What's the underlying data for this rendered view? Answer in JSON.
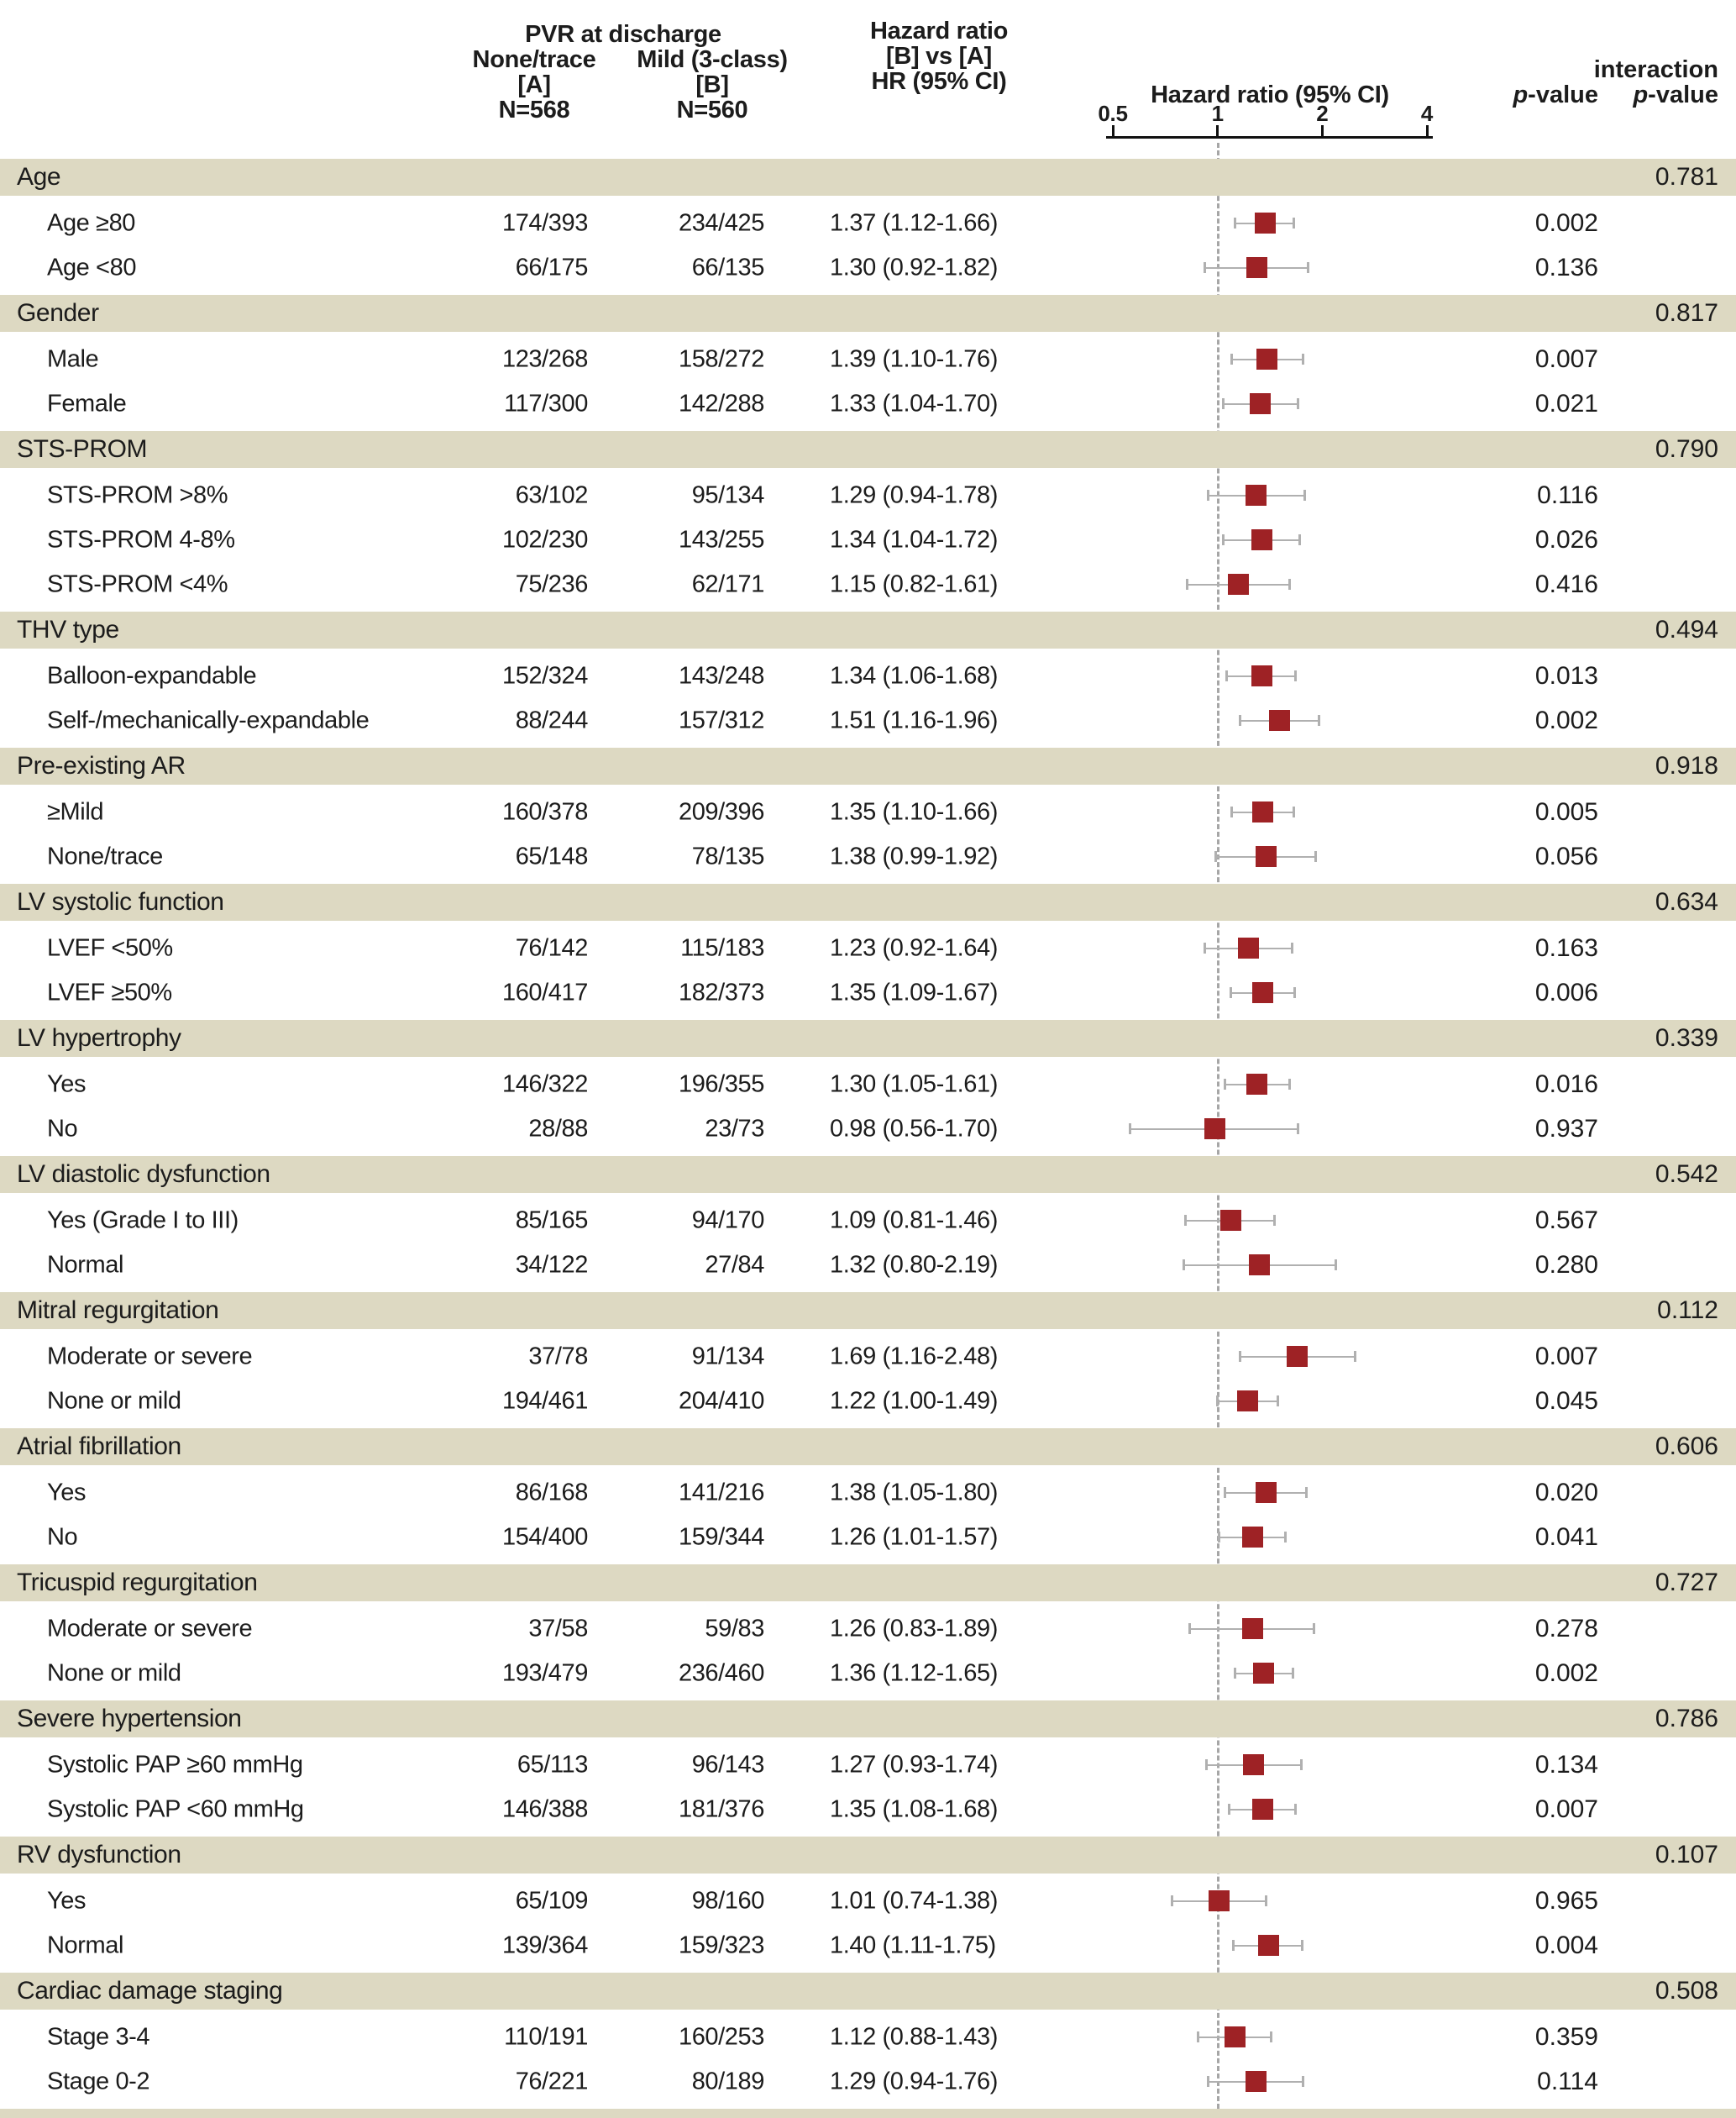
{
  "header": {
    "span_label": "PVR at discharge",
    "col_a": {
      "line1": "None/trace",
      "line2": "[A]",
      "line3": "N=568"
    },
    "col_b": {
      "line1": "Mild (3-class)",
      "line2": "[B]",
      "line3": "N=560"
    },
    "hr_col": {
      "line1": "Hazard ratio",
      "line2": "[B] vs [A]",
      "line3": "HR (95% CI)"
    },
    "plot_title": "Hazard ratio (95% CI)",
    "pvalue_label_prefix": "p",
    "pvalue_label_suffix": "-value",
    "interaction_line1": "interaction",
    "interaction_line2_prefix": "p",
    "interaction_line2_suffix": "-value"
  },
  "colors": {
    "band_bg": "#ddd9c2",
    "marker": "#9e2225",
    "whisker": "#b0b0b0",
    "reference_dash": "#a6a6a6",
    "axis": "#111111",
    "text": "#1c1c1c"
  },
  "chart_data": {
    "type": "forest",
    "title": "Hazard ratio (95% CI)",
    "axis": {
      "scale": "log2",
      "ticks": [
        0.5,
        1,
        2,
        4
      ],
      "tick_labels": [
        "0.5",
        "1",
        "2",
        "4"
      ],
      "xlim": [
        0.5,
        4
      ],
      "reference_line": 1
    },
    "legend_position": "none",
    "groups": [
      {
        "label": "Age",
        "interaction_p": "0.781",
        "items": [
          {
            "label": "Age ≥80",
            "a": "174/393",
            "b": "234/425",
            "hr_text": "1.37 (1.12-1.66)",
            "hr": 1.37,
            "lo": 1.12,
            "hi": 1.66,
            "p": "0.002"
          },
          {
            "label": "Age <80",
            "a": "66/175",
            "b": "66/135",
            "hr_text": "1.30 (0.92-1.82)",
            "hr": 1.3,
            "lo": 0.92,
            "hi": 1.82,
            "p": "0.136"
          }
        ]
      },
      {
        "label": "Gender",
        "interaction_p": "0.817",
        "items": [
          {
            "label": "Male",
            "a": "123/268",
            "b": "158/272",
            "hr_text": "1.39 (1.10-1.76)",
            "hr": 1.39,
            "lo": 1.1,
            "hi": 1.76,
            "p": "0.007"
          },
          {
            "label": "Female",
            "a": "117/300",
            "b": "142/288",
            "hr_text": "1.33 (1.04-1.70)",
            "hr": 1.33,
            "lo": 1.04,
            "hi": 1.7,
            "p": "0.021"
          }
        ]
      },
      {
        "label": "STS-PROM",
        "interaction_p": "0.790",
        "items": [
          {
            "label": "STS-PROM >8%",
            "a": "63/102",
            "b": "95/134",
            "hr_text": "1.29 (0.94-1.78)",
            "hr": 1.29,
            "lo": 0.94,
            "hi": 1.78,
            "p": "0.116"
          },
          {
            "label": "STS-PROM 4-8%",
            "a": "102/230",
            "b": "143/255",
            "hr_text": "1.34 (1.04-1.72)",
            "hr": 1.34,
            "lo": 1.04,
            "hi": 1.72,
            "p": "0.026"
          },
          {
            "label": "STS-PROM <4%",
            "a": "75/236",
            "b": "62/171",
            "hr_text": "1.15 (0.82-1.61)",
            "hr": 1.15,
            "lo": 0.82,
            "hi": 1.61,
            "p": "0.416"
          }
        ]
      },
      {
        "label": "THV type",
        "interaction_p": "0.494",
        "items": [
          {
            "label": "Balloon-expandable",
            "a": "152/324",
            "b": "143/248",
            "hr_text": "1.34 (1.06-1.68)",
            "hr": 1.34,
            "lo": 1.06,
            "hi": 1.68,
            "p": "0.013"
          },
          {
            "label": "Self-/mechanically-expandable",
            "a": "88/244",
            "b": "157/312",
            "hr_text": "1.51 (1.16-1.96)",
            "hr": 1.51,
            "lo": 1.16,
            "hi": 1.96,
            "p": "0.002"
          }
        ]
      },
      {
        "label": "Pre-existing AR",
        "interaction_p": "0.918",
        "items": [
          {
            "label": "≥Mild",
            "a": "160/378",
            "b": "209/396",
            "hr_text": "1.35 (1.10-1.66)",
            "hr": 1.35,
            "lo": 1.1,
            "hi": 1.66,
            "p": "0.005"
          },
          {
            "label": "None/trace",
            "a": "65/148",
            "b": "78/135",
            "hr_text": "1.38 (0.99-1.92)",
            "hr": 1.38,
            "lo": 0.99,
            "hi": 1.92,
            "p": "0.056"
          }
        ]
      },
      {
        "label": "LV systolic function",
        "interaction_p": "0.634",
        "items": [
          {
            "label": "LVEF <50%",
            "a": "76/142",
            "b": "115/183",
            "hr_text": "1.23 (0.92-1.64)",
            "hr": 1.23,
            "lo": 0.92,
            "hi": 1.64,
            "p": "0.163"
          },
          {
            "label": "LVEF ≥50%",
            "a": "160/417",
            "b": "182/373",
            "hr_text": "1.35 (1.09-1.67)",
            "hr": 1.35,
            "lo": 1.09,
            "hi": 1.67,
            "p": "0.006"
          }
        ]
      },
      {
        "label": "LV hypertrophy",
        "interaction_p": "0.339",
        "items": [
          {
            "label": "Yes",
            "a": "146/322",
            "b": "196/355",
            "hr_text": "1.30 (1.05-1.61)",
            "hr": 1.3,
            "lo": 1.05,
            "hi": 1.61,
            "p": "0.016"
          },
          {
            "label": "No",
            "a": "28/88",
            "b": "23/73",
            "hr_text": "0.98 (0.56-1.70)",
            "hr": 0.98,
            "lo": 0.56,
            "hi": 1.7,
            "p": "0.937"
          }
        ]
      },
      {
        "label": "LV diastolic dysfunction",
        "interaction_p": "0.542",
        "items": [
          {
            "label": "Yes (Grade I to III)",
            "a": "85/165",
            "b": "94/170",
            "hr_text": "1.09 (0.81-1.46)",
            "hr": 1.09,
            "lo": 0.81,
            "hi": 1.46,
            "p": "0.567"
          },
          {
            "label": "Normal",
            "a": "34/122",
            "b": "27/84",
            "hr_text": "1.32 (0.80-2.19)",
            "hr": 1.32,
            "lo": 0.8,
            "hi": 2.19,
            "p": "0.280"
          }
        ]
      },
      {
        "label": "Mitral regurgitation",
        "interaction_p": "0.112",
        "items": [
          {
            "label": "Moderate or severe",
            "a": "37/78",
            "b": "91/134",
            "hr_text": "1.69 (1.16-2.48)",
            "hr": 1.69,
            "lo": 1.16,
            "hi": 2.48,
            "p": "0.007"
          },
          {
            "label": "None or mild",
            "a": "194/461",
            "b": "204/410",
            "hr_text": "1.22 (1.00-1.49)",
            "hr": 1.22,
            "lo": 1.0,
            "hi": 1.49,
            "p": "0.045"
          }
        ]
      },
      {
        "label": "Atrial fibrillation",
        "interaction_p": "0.606",
        "items": [
          {
            "label": "Yes",
            "a": "86/168",
            "b": "141/216",
            "hr_text": "1.38 (1.05-1.80)",
            "hr": 1.38,
            "lo": 1.05,
            "hi": 1.8,
            "p": "0.020"
          },
          {
            "label": "No",
            "a": "154/400",
            "b": "159/344",
            "hr_text": "1.26 (1.01-1.57)",
            "hr": 1.26,
            "lo": 1.01,
            "hi": 1.57,
            "p": "0.041"
          }
        ]
      },
      {
        "label": "Tricuspid regurgitation",
        "interaction_p": "0.727",
        "items": [
          {
            "label": "Moderate or severe",
            "a": "37/58",
            "b": "59/83",
            "hr_text": "1.26 (0.83-1.89)",
            "hr": 1.26,
            "lo": 0.83,
            "hi": 1.89,
            "p": "0.278"
          },
          {
            "label": "None or mild",
            "a": "193/479",
            "b": "236/460",
            "hr_text": "1.36 (1.12-1.65)",
            "hr": 1.36,
            "lo": 1.12,
            "hi": 1.65,
            "p": "0.002"
          }
        ]
      },
      {
        "label": "Severe hypertension",
        "interaction_p": "0.786",
        "items": [
          {
            "label": "Systolic PAP ≥60 mmHg",
            "a": "65/113",
            "b": "96/143",
            "hr_text": "1.27 (0.93-1.74)",
            "hr": 1.27,
            "lo": 0.93,
            "hi": 1.74,
            "p": "0.134"
          },
          {
            "label": "Systolic PAP <60 mmHg",
            "a": "146/388",
            "b": "181/376",
            "hr_text": "1.35 (1.08-1.68)",
            "hr": 1.35,
            "lo": 1.08,
            "hi": 1.68,
            "p": "0.007"
          }
        ]
      },
      {
        "label": "RV dysfunction",
        "interaction_p": "0.107",
        "items": [
          {
            "label": "Yes",
            "a": "65/109",
            "b": "98/160",
            "hr_text": "1.01 (0.74-1.38)",
            "hr": 1.01,
            "lo": 0.74,
            "hi": 1.38,
            "p": "0.965"
          },
          {
            "label": "Normal",
            "a": "139/364",
            "b": "159/323",
            "hr_text": "1.40 (1.11-1.75)",
            "hr": 1.4,
            "lo": 1.11,
            "hi": 1.75,
            "p": "0.004"
          }
        ]
      },
      {
        "label": "Cardiac damage staging",
        "interaction_p": "0.508",
        "items": [
          {
            "label": "Stage 3-4",
            "a": "110/191",
            "b": "160/253",
            "hr_text": "1.12 (0.88-1.43)",
            "hr": 1.12,
            "lo": 0.88,
            "hi": 1.43,
            "p": "0.359"
          },
          {
            "label": "Stage 0-2",
            "a": "76/221",
            "b": "80/189",
            "hr_text": "1.29 (0.94-1.76)",
            "hr": 1.29,
            "lo": 0.94,
            "hi": 1.76,
            "p": "0.114"
          }
        ]
      }
    ]
  }
}
